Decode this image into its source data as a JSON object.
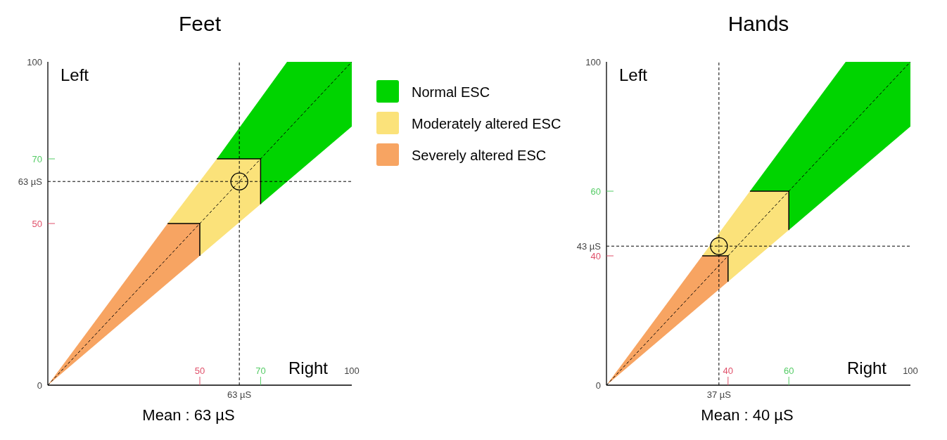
{
  "chart_data": [
    {
      "type": "scatter",
      "title": "Feet",
      "xlabel": "Right",
      "ylabel": "Left",
      "xlim": [
        0,
        100
      ],
      "ylim": [
        0,
        100
      ],
      "xticks": [
        50,
        70,
        100
      ],
      "yticks": [
        0,
        50,
        70,
        100
      ],
      "legend": "right",
      "grid": false,
      "marker": "circle",
      "series": [
        {
          "type": "area",
          "marker": "none",
          "name": "Normal ESC",
          "color": "#00d400",
          "x": [
            55.6,
            78.7,
            100,
            100,
            70,
            70
          ],
          "values": [
            70,
            100,
            100,
            80,
            56,
            70
          ]
        },
        {
          "type": "area",
          "marker": "none",
          "name": "Moderately altered ESC",
          "color": "#fbe27a",
          "x": [
            39.4,
            55.6,
            70,
            70,
            50,
            50
          ],
          "values": [
            50,
            70,
            70,
            56,
            40,
            50
          ]
        },
        {
          "type": "area",
          "marker": "none",
          "name": "Severely altered ESC",
          "color": "#f7a462",
          "x": [
            0,
            39.4,
            50,
            50
          ],
          "values": [
            0,
            50,
            50,
            40
          ]
        },
        {
          "type": "line",
          "marker": "none",
          "color": "#000000",
          "line_style": "dashed",
          "x": [
            0,
            100
          ],
          "values": [
            0,
            100
          ]
        },
        {
          "type": "scatter",
          "color": "#000000",
          "x": [
            63
          ],
          "values": [
            63
          ]
        }
      ],
      "ref_lines": [
        {
          "axis": "x",
          "value": 63,
          "label": "63 µS"
        },
        {
          "axis": "y",
          "value": 63,
          "label": "63 µS"
        }
      ],
      "annotations": [
        "Mean : 63 µS"
      ]
    },
    {
      "type": "scatter",
      "title": "Hands",
      "xlabel": "Right",
      "ylabel": "Left",
      "xlim": [
        0,
        100
      ],
      "ylim": [
        0,
        100
      ],
      "xticks": [
        40,
        60,
        100
      ],
      "yticks": [
        0,
        40,
        60,
        100
      ],
      "grid": false,
      "marker": "circle",
      "series": [
        {
          "type": "area",
          "marker": "none",
          "color": "#00d400",
          "x": [
            47.2,
            78.7,
            100,
            100,
            60,
            60
          ],
          "values": [
            60,
            100,
            100,
            80,
            48,
            60
          ]
        },
        {
          "type": "area",
          "marker": "none",
          "color": "#fbe27a",
          "x": [
            31.5,
            47.2,
            60,
            60,
            40,
            40
          ],
          "values": [
            40,
            60,
            60,
            48,
            32,
            40
          ]
        },
        {
          "type": "area",
          "marker": "none",
          "color": "#f7a462",
          "x": [
            0,
            31.5,
            40,
            40
          ],
          "values": [
            0,
            40,
            40,
            32
          ]
        },
        {
          "type": "line",
          "marker": "none",
          "color": "#000000",
          "line_style": "dashed",
          "x": [
            0,
            100
          ],
          "values": [
            0,
            100
          ]
        },
        {
          "type": "scatter",
          "color": "#000000",
          "x": [
            37
          ],
          "values": [
            43
          ]
        }
      ],
      "ref_lines": [
        {
          "axis": "x",
          "value": 37,
          "label": "37 µS"
        },
        {
          "axis": "y",
          "value": 43,
          "label": "43 µS"
        }
      ],
      "annotations": [
        "Mean : 40 µS"
      ]
    }
  ]
}
